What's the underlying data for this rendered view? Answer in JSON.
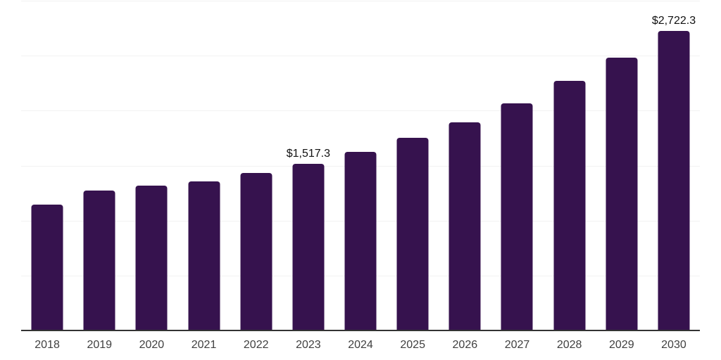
{
  "chart_data": {
    "type": "bar",
    "title": "",
    "xlabel": "",
    "ylabel": "",
    "unit": "USD million (inferred from $ labels)",
    "categories": [
      "2018",
      "2019",
      "2020",
      "2021",
      "2022",
      "2023",
      "2024",
      "2025",
      "2026",
      "2027",
      "2028",
      "2029",
      "2030"
    ],
    "values": [
      1144,
      1270,
      1315,
      1358,
      1430,
      1517.3,
      1624,
      1750,
      1896,
      2066,
      2269,
      2484,
      2722.3
    ],
    "point_labels": [
      null,
      null,
      null,
      null,
      null,
      "$1,517.3",
      null,
      null,
      null,
      null,
      null,
      null,
      "$2,722.3"
    ],
    "ylim": [
      0,
      3000
    ],
    "gridline_values": [
      500,
      1000,
      1500,
      2000,
      2500,
      3000
    ],
    "grid": true,
    "legend": "none",
    "colors": {
      "bar": "#36124e",
      "grid": "#f2f2f2",
      "axis": "#333333",
      "tick_label": "#404040",
      "data_label": "#111111",
      "background": "#ffffff"
    }
  }
}
